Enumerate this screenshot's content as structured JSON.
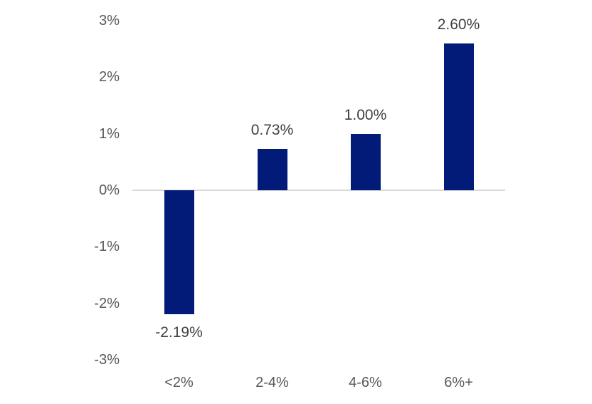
{
  "chart_data": {
    "type": "bar",
    "title": "",
    "xlabel": "",
    "ylabel": "",
    "categories": [
      "<2%",
      "2-4%",
      "4-6%",
      "6%+"
    ],
    "values": [
      -2.19,
      0.73,
      1.0,
      2.6
    ],
    "data_labels": [
      "-2.19%",
      "0.73%",
      "1.00%",
      "2.60%"
    ],
    "ylim": [
      -3,
      3
    ],
    "ytick_values": [
      3,
      2,
      1,
      0,
      -1,
      -2,
      -3
    ],
    "ytick_labels": [
      "3%",
      "2%",
      "1%",
      "0%",
      "-1%",
      "-2%",
      "-3%"
    ],
    "grid": false,
    "legend": "none",
    "colors": {
      "bar": "#021a78",
      "axis_label": "#595959",
      "data_label": "#404040",
      "zero_line": "#d9d9d9",
      "background": "#ffffff"
    }
  }
}
